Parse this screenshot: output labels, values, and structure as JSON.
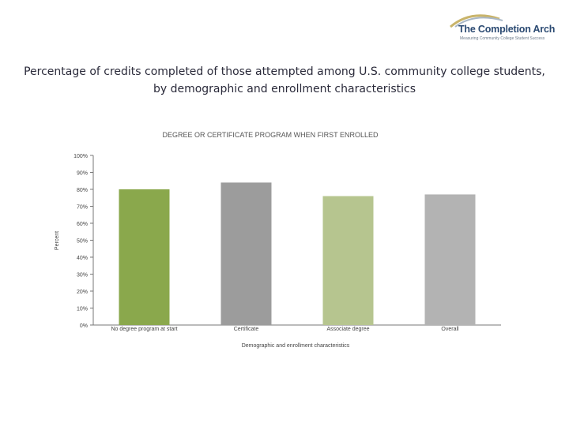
{
  "logo": {
    "name": "The Completion Arch",
    "tagline": "Measuring Community College Student Success"
  },
  "slide": {
    "title": "Percentage of credits completed of those attempted among U.S. community college students, by demographic and enrollment characteristics"
  },
  "chart_data": {
    "type": "bar",
    "title": "DEGREE OR CERTIFICATE PROGRAM WHEN FIRST ENROLLED",
    "categories": [
      "No degree program at start",
      "Certificate",
      "Associate degree",
      "Overall"
    ],
    "values": [
      80,
      84,
      76,
      77
    ],
    "colors": [
      "#8aa84c",
      "#9c9c9c",
      "#b6c58f",
      "#b3b3b3"
    ],
    "xlabel": "Demographic and enrollment characteristics",
    "ylabel": "Percent",
    "ylim": [
      0,
      100
    ],
    "yticks": [
      0,
      10,
      20,
      30,
      40,
      50,
      60,
      70,
      80,
      90,
      100
    ],
    "ytick_labels": [
      "0%",
      "10%",
      "20%",
      "30%",
      "40%",
      "50%",
      "60%",
      "70%",
      "80%",
      "90%",
      "100%"
    ],
    "grid": false,
    "legend": "none"
  }
}
